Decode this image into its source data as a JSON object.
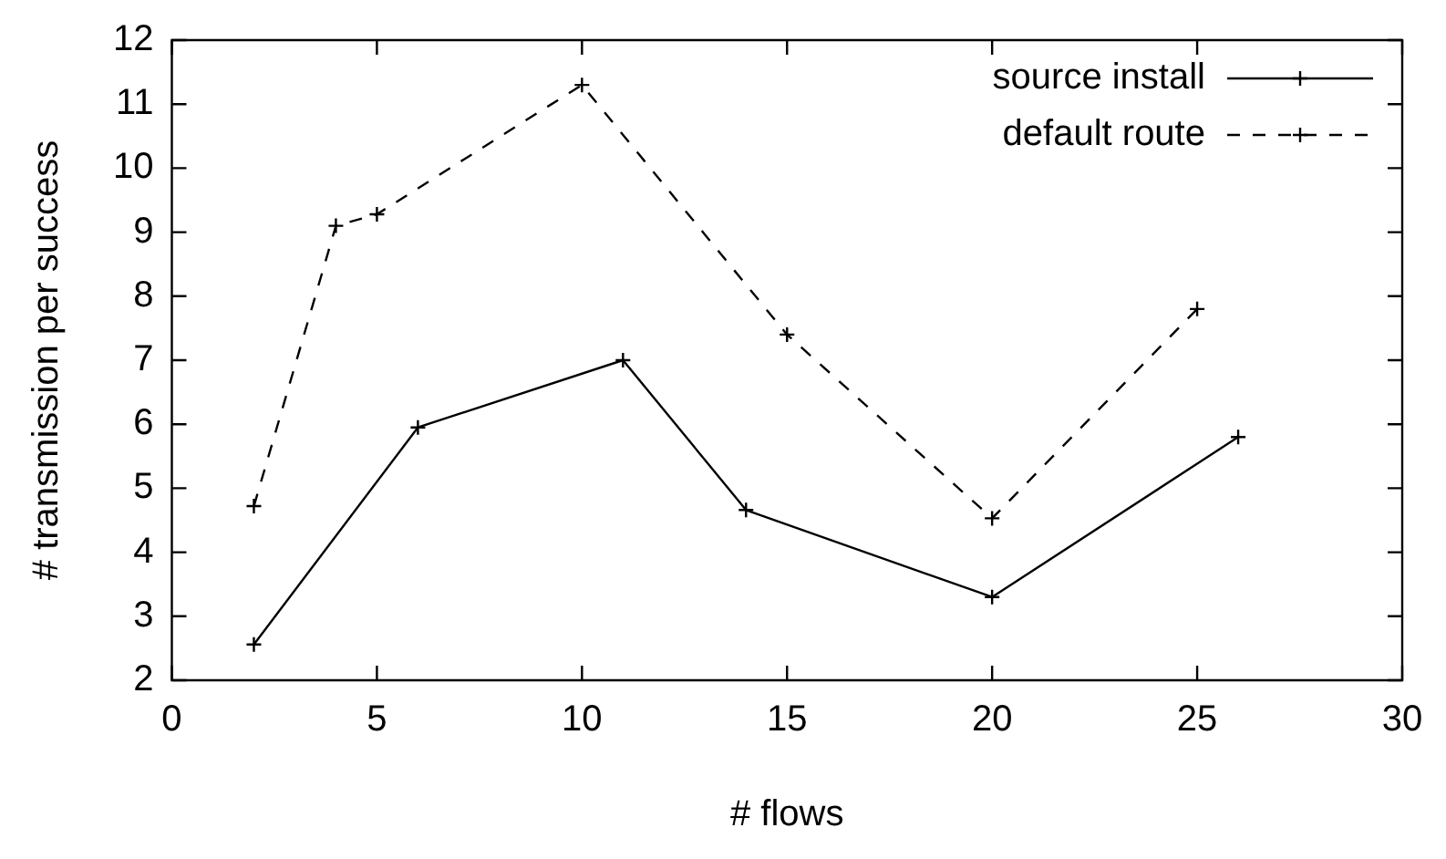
{
  "chart_data": {
    "type": "line",
    "xlabel": "# flows",
    "ylabel": "# transmission per success",
    "xlim": [
      0,
      30
    ],
    "xticks": [
      0,
      5,
      10,
      15,
      20,
      25,
      30
    ],
    "ylim": [
      2,
      12
    ],
    "yticks": [
      2,
      3,
      4,
      5,
      6,
      7,
      8,
      9,
      10,
      11,
      12
    ],
    "grid": false,
    "legend": "top right",
    "series": [
      {
        "name": "source install",
        "color": "#000000",
        "x": [
          2,
          6,
          11,
          14,
          20,
          26
        ],
        "values": [
          2.56,
          5.95,
          7.0,
          4.66,
          3.3,
          5.8
        ],
        "marker": "cross",
        "line_style": "solid"
      },
      {
        "name": "default route",
        "color": "#000000",
        "x": [
          2,
          4,
          5,
          10,
          15,
          20,
          25
        ],
        "values": [
          4.72,
          9.1,
          9.28,
          11.3,
          7.4,
          4.53,
          7.8
        ],
        "marker": "cross",
        "line_style": "dashed"
      }
    ]
  }
}
